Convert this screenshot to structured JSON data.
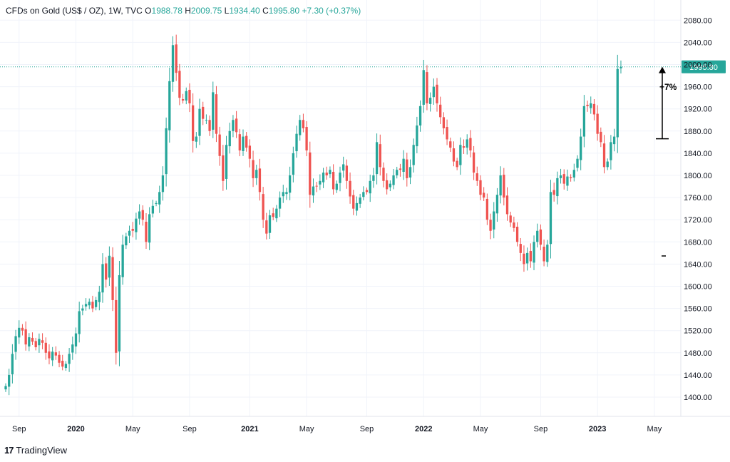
{
  "legend": {
    "symbol": "CFDs on Gold (US$ / OZ), 1W, TVC",
    "o_label": "O",
    "o_value": "1988.78",
    "h_label": "H",
    "h_value": "2009.75",
    "l_label": "L",
    "l_value": "1934.40",
    "c_label": "C",
    "c_value": "1995.80",
    "change": "+7.30 (+0.37%)"
  },
  "brand": {
    "logo": "17",
    "name": "TradingView"
  },
  "colors": {
    "up": "#26a69a",
    "down": "#ef5350",
    "grid": "#f0f3fa",
    "axis_text": "#131722",
    "price_tag": "#26a69a"
  },
  "chart_data": {
    "type": "candlestick",
    "series_name": "CFDs on Gold (US$ / OZ)",
    "interval": "1W",
    "y_ticks": [
      "2080.00",
      "2040.00",
      "2000.00",
      "1960.00",
      "1920.00",
      "1880.00",
      "1840.00",
      "1800.00",
      "1760.00",
      "1720.00",
      "1680.00",
      "1640.00",
      "1600.00",
      "1560.00",
      "1520.00",
      "1480.00",
      "1440.00",
      "1400.00"
    ],
    "ylim": [
      1380,
      2110
    ],
    "x_ticks": [
      {
        "label": "Sep",
        "week": 4,
        "bold": false
      },
      {
        "label": "2020",
        "week": 21,
        "bold": true
      },
      {
        "label": "May",
        "week": 38,
        "bold": false
      },
      {
        "label": "Sep",
        "week": 55,
        "bold": false
      },
      {
        "label": "2021",
        "week": 73,
        "bold": true
      },
      {
        "label": "May",
        "week": 90,
        "bold": false
      },
      {
        "label": "Sep",
        "week": 108,
        "bold": false
      },
      {
        "label": "2022",
        "week": 125,
        "bold": true
      },
      {
        "label": "May",
        "week": 142,
        "bold": false
      },
      {
        "label": "Sep",
        "week": 160,
        "bold": false
      },
      {
        "label": "2023",
        "week": 177,
        "bold": true
      },
      {
        "label": "May",
        "week": 194,
        "bold": false
      }
    ],
    "closes": [
      1420,
      1440,
      1478,
      1510,
      1525,
      1520,
      1495,
      1508,
      1500,
      1490,
      1505,
      1498,
      1480,
      1470,
      1482,
      1475,
      1462,
      1455,
      1460,
      1478,
      1495,
      1515,
      1555,
      1560,
      1568,
      1572,
      1560,
      1575,
      1590,
      1640,
      1612,
      1655,
      1575,
      1480,
      1620,
      1675,
      1690,
      1700,
      1700,
      1722,
      1735,
      1720,
      1680,
      1730,
      1745,
      1750,
      1770,
      1800,
      1885,
      1970,
      2035,
      1985,
      1940,
      1935,
      1952,
      1930,
      1862,
      1870,
      1920,
      1902,
      1900,
      1880,
      1950,
      1875,
      1835,
      1790,
      1855,
      1880,
      1900,
      1878,
      1845,
      1870,
      1850,
      1830,
      1795,
      1810,
      1770,
      1720,
      1695,
      1728,
      1725,
      1740,
      1760,
      1770,
      1770,
      1800,
      1840,
      1875,
      1900,
      1885,
      1845,
      1765,
      1780,
      1780,
      1790,
      1805,
      1800,
      1810,
      1775,
      1785,
      1805,
      1820,
      1790,
      1762,
      1740,
      1750,
      1760,
      1770,
      1770,
      1790,
      1800,
      1860,
      1815,
      1790,
      1775,
      1785,
      1800,
      1810,
      1810,
      1830,
      1795,
      1815,
      1855,
      1890,
      1925,
      1990,
      1930,
      1940,
      1960,
      1930,
      1905,
      1885,
      1865,
      1850,
      1825,
      1815,
      1855,
      1850,
      1865,
      1845,
      1805,
      1790,
      1765,
      1760,
      1720,
      1700,
      1735,
      1765,
      1800,
      1760,
      1730,
      1715,
      1705,
      1680,
      1660,
      1640,
      1660,
      1645,
      1680,
      1700,
      1675,
      1645,
      1675,
      1770,
      1765,
      1795,
      1800,
      1785,
      1798,
      1795,
      1810,
      1830,
      1870,
      1925,
      1925,
      1930,
      1910,
      1875,
      1860,
      1815,
      1825,
      1860,
      1870,
      1992,
      1995.8
    ],
    "last_price": 1995.8,
    "annotations": [
      {
        "type": "price-range",
        "from": 1866,
        "to": 1996,
        "label": "+7%"
      }
    ]
  }
}
